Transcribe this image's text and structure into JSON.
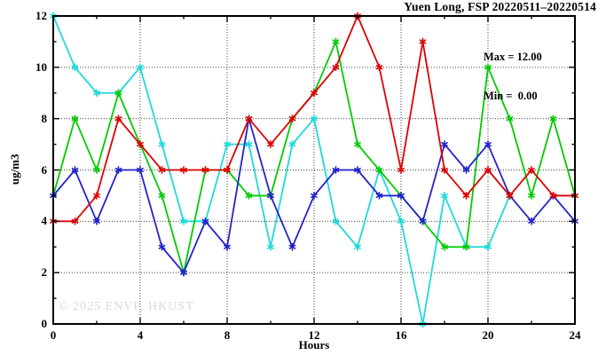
{
  "title": "Yuen Long, FSP 20220511–20220514",
  "stats": {
    "max_label": "Max = 12.00",
    "min_label": "Min =  0.00"
  },
  "watermark": "© 2025 ENVF, HKUST",
  "axes": {
    "xlabel": "Hours",
    "ylabel": "ug/m3",
    "x_ticks": [
      0,
      4,
      8,
      12,
      16,
      20,
      24
    ],
    "x_minor_ticks": [
      2,
      6,
      10,
      14,
      18,
      22
    ],
    "y_ticks": [
      0,
      2,
      4,
      6,
      8,
      10,
      12
    ],
    "y_minor_ticks": [
      1,
      3,
      5,
      7,
      9,
      11
    ],
    "grid_x": [
      4,
      8,
      12,
      16,
      20
    ],
    "grid_y": [
      2,
      4,
      6,
      8,
      10
    ]
  },
  "colors": {
    "red": "#dd0000",
    "green": "#00cc00",
    "blue": "#2323cc",
    "cyan": "#1fd9d9",
    "grid": "#444444",
    "frame": "#000000"
  },
  "chart_data": {
    "type": "line",
    "title": "Yuen Long, FSP 20220511–20220514",
    "xlabel": "Hours",
    "ylabel": "ug/m3",
    "xlim": [
      0,
      24
    ],
    "ylim": [
      0,
      12
    ],
    "grid": true,
    "legend_position": "none",
    "annotations": [
      "Max = 12.00",
      "Min =  0.00"
    ],
    "x": [
      0,
      1,
      2,
      3,
      4,
      5,
      6,
      7,
      8,
      9,
      10,
      11,
      12,
      13,
      14,
      15,
      16,
      17,
      18,
      19,
      20,
      21,
      22,
      23,
      24
    ],
    "series": [
      {
        "name": "cyan",
        "color": "#1fd9d9",
        "values": [
          12,
          10,
          9,
          9,
          10,
          7,
          4,
          4,
          7,
          7,
          3,
          7,
          8,
          4,
          3,
          6,
          4,
          0,
          5,
          3,
          3,
          5
        ]
      },
      {
        "name": "green",
        "color": "#00cc00",
        "values": [
          5,
          8,
          6,
          9,
          7,
          5,
          2,
          6,
          6,
          5,
          5,
          8,
          9,
          11,
          7,
          6,
          5,
          4,
          3,
          3,
          10,
          8,
          5,
          8,
          5
        ]
      },
      {
        "name": "blue",
        "color": "#2323cc",
        "values": [
          5,
          6,
          4,
          6,
          6,
          3,
          2,
          4,
          3,
          8,
          5,
          3,
          5,
          6,
          6,
          5,
          5,
          4,
          7,
          6,
          7,
          5,
          4,
          5,
          4
        ]
      },
      {
        "name": "red",
        "color": "#dd0000",
        "values": [
          4,
          4,
          5,
          8,
          7,
          6,
          6,
          6,
          6,
          8,
          7,
          8,
          9,
          10,
          12,
          10,
          6,
          11,
          6,
          5,
          6,
          5,
          6,
          5,
          5
        ]
      }
    ]
  }
}
